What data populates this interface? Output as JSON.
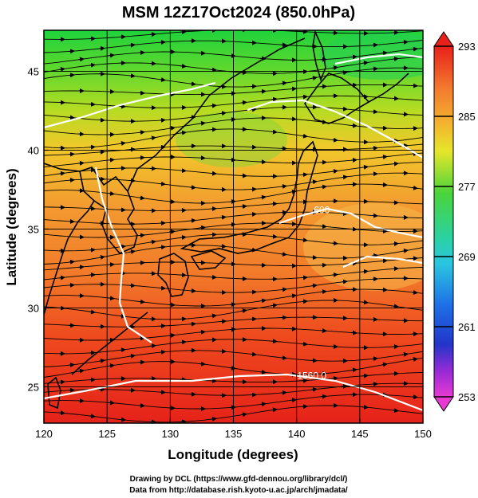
{
  "title": "MSM 12Z17Oct2024 (850.0hPa)",
  "xaxis": {
    "label": "Longitude (degrees)",
    "ticks": [
      "120",
      "125",
      "130",
      "135",
      "140",
      "145",
      "150"
    ]
  },
  "yaxis": {
    "label": "Latitude  (degrees)",
    "ticks": [
      "25",
      "30",
      "35",
      "40",
      "45"
    ]
  },
  "colorbar": {
    "min_label": "253",
    "max_label": "293",
    "ticks": [
      "293",
      "285",
      "277",
      "269",
      "261",
      "253"
    ]
  },
  "contours": [
    {
      "label": "1560.0",
      "lon": 141.2,
      "lat": 25.5
    },
    {
      "label": "600",
      "lon": 142.0,
      "lat": 36.0
    }
  ],
  "credits": [
    "Drawing by DCL (https://www.gfd-dennou.org/library/dcl/)",
    "Data from http://database.rish.kyoto-u.ac.jp/arch/jmadata/"
  ],
  "colors": {
    "warm": "#e8241a",
    "mid": "#f5a23a",
    "cool": "#3ad23a",
    "contour": "#ffffff"
  }
}
